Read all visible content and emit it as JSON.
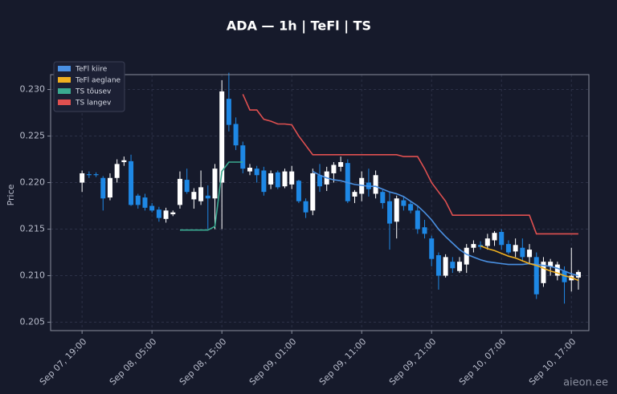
{
  "chart_data": {
    "type": "candlestick",
    "title": "ADA — 1h  |  TeFl  |  TS",
    "y_label": "Price",
    "watermark": "aieon.ee",
    "categories": [
      "Sep 07, 19:00",
      null,
      null,
      null,
      null,
      null,
      null,
      null,
      null,
      null,
      "Sep 08, 05:00",
      null,
      null,
      null,
      null,
      null,
      null,
      null,
      null,
      null,
      "Sep 08, 15:00",
      null,
      null,
      null,
      null,
      null,
      null,
      null,
      null,
      null,
      "Sep 09, 01:00",
      null,
      null,
      null,
      null,
      null,
      null,
      null,
      null,
      null,
      "Sep 09, 11:00",
      null,
      null,
      null,
      null,
      null,
      null,
      null,
      null,
      null,
      "Sep 09, 21:00",
      null,
      null,
      null,
      null,
      null,
      null,
      null,
      null,
      null,
      "Sep 10, 07:00",
      null,
      null,
      null,
      null,
      null,
      null,
      null,
      null,
      null,
      "Sep 10, 17:00",
      null
    ],
    "candles": {
      "open": [
        0.22,
        0.2209,
        0.2209,
        0.2205,
        0.2184,
        0.2205,
        0.2222,
        0.2223,
        0.2186,
        0.2184,
        0.2175,
        0.2171,
        0.2161,
        0.2166,
        0.2176,
        0.2203,
        0.2182,
        0.218,
        0.2186,
        0.2183,
        0.22,
        0.229,
        0.2263,
        0.224,
        0.2212,
        0.2215,
        0.2213,
        0.2198,
        0.2211,
        0.2196,
        0.2198,
        0.2202,
        0.218,
        0.217,
        0.2208,
        0.2198,
        0.221,
        0.2217,
        0.2221,
        0.2185,
        0.2188,
        0.22,
        0.2188,
        0.219,
        0.218,
        0.2158,
        0.2181,
        0.2177,
        0.217,
        0.2152,
        0.214,
        0.2122,
        0.21,
        0.2115,
        0.2105,
        0.2112,
        0.213,
        0.2133,
        0.2132,
        0.2138,
        0.2147,
        0.2134,
        0.2126,
        0.213,
        0.212,
        0.212,
        0.2092,
        0.211,
        0.21,
        0.2105,
        0.2095,
        0.2098
      ],
      "high": [
        0.2213,
        0.2212,
        0.2211,
        0.2207,
        0.221,
        0.2225,
        0.2228,
        0.223,
        0.2188,
        0.2188,
        0.2178,
        0.2174,
        0.2173,
        0.217,
        0.2212,
        0.2215,
        0.2194,
        0.2213,
        0.2197,
        0.222,
        0.231,
        0.2318,
        0.227,
        0.2244,
        0.222,
        0.2218,
        0.2217,
        0.2213,
        0.2213,
        0.2215,
        0.2218,
        0.2203,
        0.2183,
        0.2215,
        0.222,
        0.2217,
        0.2222,
        0.2228,
        0.2225,
        0.2192,
        0.2212,
        0.2215,
        0.2213,
        0.2192,
        0.219,
        0.2186,
        0.2185,
        0.218,
        0.2175,
        0.216,
        0.2143,
        0.2125,
        0.2123,
        0.212,
        0.212,
        0.2134,
        0.2138,
        0.2137,
        0.2145,
        0.2148,
        0.215,
        0.2138,
        0.214,
        0.214,
        0.2134,
        0.2125,
        0.212,
        0.2118,
        0.2115,
        0.211,
        0.213,
        0.2106
      ],
      "low": [
        0.219,
        0.2205,
        0.2206,
        0.217,
        0.2181,
        0.22,
        0.2218,
        0.2175,
        0.2172,
        0.217,
        0.2168,
        0.2158,
        0.2157,
        0.2164,
        0.2172,
        0.2188,
        0.2172,
        0.2176,
        0.215,
        0.215,
        0.215,
        0.2255,
        0.2235,
        0.221,
        0.2208,
        0.22,
        0.2186,
        0.2193,
        0.2193,
        0.2194,
        0.2193,
        0.2178,
        0.2162,
        0.2165,
        0.219,
        0.2191,
        0.22,
        0.2212,
        0.2178,
        0.2178,
        0.218,
        0.2185,
        0.2183,
        0.2172,
        0.2128,
        0.214,
        0.217,
        0.2167,
        0.2145,
        0.214,
        0.211,
        0.2085,
        0.2098,
        0.2103,
        0.2103,
        0.2103,
        0.2125,
        0.2128,
        0.2128,
        0.2132,
        0.2128,
        0.2123,
        0.212,
        0.2115,
        0.2112,
        0.2075,
        0.2088,
        0.21,
        0.2095,
        0.207,
        0.2083,
        0.2085
      ],
      "close": [
        0.221,
        0.2208,
        0.2208,
        0.2183,
        0.2205,
        0.222,
        0.2224,
        0.2176,
        0.2176,
        0.2173,
        0.217,
        0.2162,
        0.217,
        0.2168,
        0.2204,
        0.219,
        0.219,
        0.2195,
        0.2183,
        0.2215,
        0.2298,
        0.2262,
        0.224,
        0.2215,
        0.2216,
        0.2208,
        0.219,
        0.221,
        0.2195,
        0.2212,
        0.2212,
        0.218,
        0.2168,
        0.221,
        0.2196,
        0.2212,
        0.2219,
        0.2222,
        0.218,
        0.219,
        0.2205,
        0.2193,
        0.2208,
        0.2178,
        0.2156,
        0.2183,
        0.2175,
        0.217,
        0.215,
        0.2145,
        0.2118,
        0.21,
        0.212,
        0.2108,
        0.2115,
        0.213,
        0.2134,
        0.2131,
        0.214,
        0.2146,
        0.2133,
        0.2125,
        0.2133,
        0.212,
        0.2128,
        0.208,
        0.2115,
        0.2115,
        0.2112,
        0.2093,
        0.21,
        0.2104
      ],
      "up_color": "#ffffff",
      "down_color": "#1e88e5"
    },
    "series": [
      {
        "name": "TeFl kiire",
        "color": "#4a90e2",
        "values": [
          null,
          null,
          null,
          null,
          null,
          null,
          null,
          null,
          null,
          null,
          null,
          null,
          null,
          null,
          null,
          null,
          null,
          null,
          null,
          null,
          null,
          null,
          null,
          null,
          null,
          null,
          null,
          null,
          null,
          null,
          null,
          null,
          null,
          0.2212,
          0.2208,
          0.2205,
          0.2203,
          0.2202,
          0.22,
          0.2198,
          0.2197,
          0.2196,
          0.2196,
          0.2193,
          0.219,
          0.2188,
          0.2185,
          0.218,
          0.2175,
          0.2168,
          0.216,
          0.215,
          0.2142,
          0.2135,
          0.2128,
          0.2123,
          0.212,
          0.2117,
          0.2115,
          0.2114,
          0.2113,
          0.2112,
          0.2112,
          0.2112,
          0.2113,
          0.2112,
          0.2111,
          0.211,
          0.2108,
          0.2105,
          0.2102,
          0.21
        ]
      },
      {
        "name": "TeFl aeglane",
        "color": "#f0b020",
        "values": [
          null,
          null,
          null,
          null,
          null,
          null,
          null,
          null,
          null,
          null,
          null,
          null,
          null,
          null,
          null,
          null,
          null,
          null,
          null,
          null,
          null,
          null,
          null,
          null,
          null,
          null,
          null,
          null,
          null,
          null,
          null,
          null,
          null,
          null,
          null,
          null,
          null,
          null,
          null,
          null,
          null,
          null,
          null,
          null,
          null,
          null,
          null,
          null,
          null,
          null,
          null,
          null,
          null,
          null,
          null,
          null,
          null,
          0.2132,
          0.2129,
          0.2127,
          0.2124,
          0.2121,
          0.2119,
          0.2116,
          0.2113,
          0.2111,
          0.2108,
          0.2105,
          0.2103,
          0.21,
          0.2098,
          0.2095
        ]
      },
      {
        "name": "TS tõusev",
        "color": "#3aaa90",
        "values": [
          null,
          null,
          null,
          null,
          null,
          null,
          null,
          null,
          null,
          null,
          null,
          null,
          null,
          null,
          0.2149,
          0.2149,
          0.2149,
          0.2149,
          0.2149,
          0.2153,
          0.2212,
          0.2222,
          0.2222,
          0.2222,
          null,
          null,
          null,
          null,
          null,
          null,
          null,
          null,
          null,
          null,
          null,
          null,
          null,
          null,
          null,
          null,
          null,
          null,
          null,
          null,
          null,
          null,
          null,
          null,
          null,
          null,
          null,
          null,
          null,
          null,
          null,
          null,
          null,
          null,
          null,
          null,
          null,
          null,
          null,
          null,
          null,
          null,
          null,
          null,
          null,
          null,
          null,
          null
        ]
      },
      {
        "name": "TS langev",
        "color": "#e05050",
        "values": [
          null,
          null,
          null,
          null,
          null,
          null,
          null,
          null,
          null,
          null,
          null,
          null,
          null,
          null,
          null,
          null,
          null,
          null,
          null,
          null,
          null,
          null,
          null,
          0.2295,
          0.2278,
          0.2278,
          0.2268,
          0.2266,
          0.2263,
          0.2263,
          0.2262,
          0.225,
          0.224,
          0.223,
          0.223,
          0.223,
          0.223,
          0.223,
          0.223,
          0.223,
          0.223,
          0.223,
          0.223,
          0.223,
          0.223,
          0.223,
          0.2228,
          0.2228,
          0.2228,
          0.2215,
          0.22,
          0.219,
          0.218,
          0.2165,
          0.2165,
          0.2165,
          0.2165,
          0.2165,
          0.2165,
          0.2165,
          0.2165,
          0.2165,
          0.2165,
          0.2165,
          0.2165,
          0.2145,
          0.2145,
          0.2145,
          0.2145,
          0.2145,
          0.2145,
          0.2145
        ]
      }
    ],
    "ylim": [
      0.2041,
      0.2316
    ],
    "yticks": [
      0.205,
      {
        "value": 0.21,
        "label": "0.210"
      },
      0.215,
      {
        "value": 0.22,
        "label": "0.220"
      },
      0.225,
      {
        "value": 0.23,
        "label": "0.230"
      }
    ],
    "grid": true,
    "legend": "upper left"
  }
}
